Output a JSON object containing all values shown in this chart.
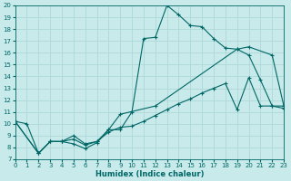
{
  "xlabel": "Humidex (Indice chaleur)",
  "bg_color": "#c8eaea",
  "line_color": "#006666",
  "grid_color": "#b0d8d8",
  "xlim": [
    0,
    23
  ],
  "ylim": [
    7,
    20
  ],
  "xticks": [
    0,
    1,
    2,
    3,
    4,
    5,
    6,
    7,
    8,
    9,
    10,
    11,
    12,
    13,
    14,
    15,
    16,
    17,
    18,
    19,
    20,
    21,
    22,
    23
  ],
  "yticks": [
    7,
    8,
    9,
    10,
    11,
    12,
    13,
    14,
    15,
    16,
    17,
    18,
    19,
    20
  ],
  "line1_x": [
    0,
    1,
    2,
    3,
    4,
    5,
    6,
    7,
    8,
    9,
    10,
    11,
    12,
    13,
    14,
    15,
    16,
    17,
    18,
    19,
    20,
    21,
    22,
    23
  ],
  "line1_y": [
    10.2,
    10.0,
    7.5,
    8.5,
    8.5,
    8.3,
    7.9,
    8.4,
    9.5,
    9.5,
    11.0,
    17.2,
    17.3,
    20.0,
    19.2,
    18.3,
    18.2,
    17.2,
    16.4,
    16.3,
    15.8,
    13.7,
    11.5,
    11.5
  ],
  "line2_x": [
    0,
    2,
    3,
    4,
    5,
    6,
    7,
    8,
    9,
    12,
    19,
    20,
    22,
    23
  ],
  "line2_y": [
    10.2,
    7.5,
    8.5,
    8.5,
    9.0,
    8.3,
    8.5,
    9.5,
    10.8,
    11.5,
    16.3,
    16.5,
    15.8,
    11.5
  ],
  "line3_x": [
    0,
    2,
    3,
    4,
    5,
    6,
    7,
    8,
    9,
    10,
    11,
    12,
    13,
    14,
    15,
    16,
    17,
    18,
    19,
    20,
    21,
    22,
    23
  ],
  "line3_y": [
    10.2,
    7.5,
    8.5,
    8.5,
    8.7,
    8.2,
    8.5,
    9.3,
    9.7,
    9.8,
    10.2,
    10.7,
    11.2,
    11.7,
    12.1,
    12.6,
    13.0,
    13.4,
    11.2,
    13.9,
    11.5,
    11.5,
    11.3
  ]
}
